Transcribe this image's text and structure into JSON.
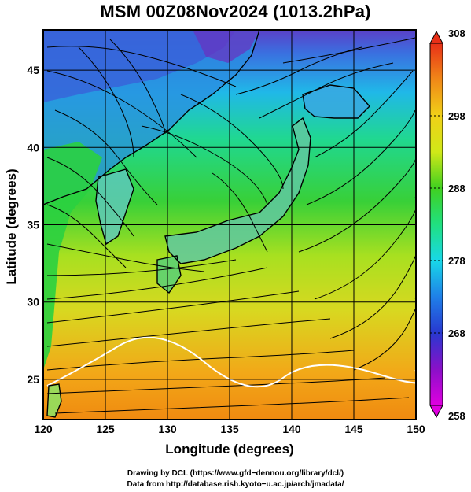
{
  "title": "MSM 00Z08Nov2024 (1013.2hPa)",
  "axes": {
    "xlabel": "Longitude (degrees)",
    "ylabel": "Latitude  (degrees)",
    "xticks": [
      "120",
      "125",
      "130",
      "135",
      "140",
      "145",
      "150"
    ],
    "yticks": [
      "25",
      "30",
      "35",
      "40",
      "45"
    ],
    "xlim": [
      120,
      150
    ],
    "ylim": [
      22.4,
      47.6
    ]
  },
  "colorbar": {
    "ticks": [
      "258",
      "268",
      "278",
      "288",
      "298",
      "308"
    ],
    "range": [
      258,
      308
    ],
    "colors": [
      "#e000e0",
      "#5a1fb0",
      "#1e40d8",
      "#1f8fe8",
      "#18d8e0",
      "#1ee890",
      "#2ad028",
      "#a8e018",
      "#e8e818",
      "#f0b418",
      "#f07818",
      "#e82818"
    ]
  },
  "credits": {
    "line1": "Drawing by DCL (https://www.gfd−dennou.org/library/dcl/)",
    "line2": "Data from http://database.rish.kyoto−u.ac.jp/arch/jmadata/"
  },
  "colors": {
    "ocean_south": "#f2a018",
    "ocean_mid": "#d8e02a",
    "ocean_north": "#30d860",
    "land_cold": "#1e60e0",
    "streamline": "#000000",
    "coastline": "#000000"
  }
}
